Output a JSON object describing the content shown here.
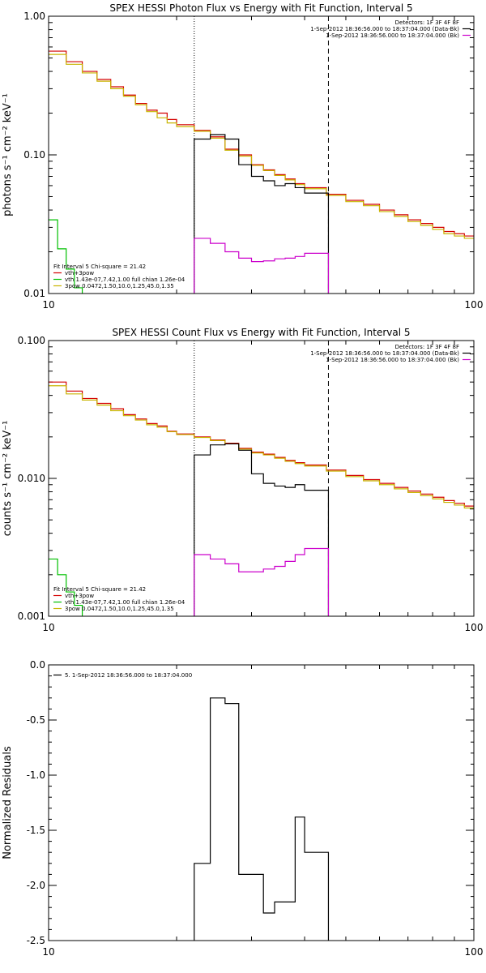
{
  "chart_data": [
    {
      "type": "line",
      "scale": {
        "x": "log",
        "y": "log"
      },
      "title": "SPEX HESSI Photon Flux vs Energy with Fit Function, Interval 5",
      "ylabel": "photons s⁻¹ cm⁻² keV⁻¹",
      "xlabel": "",
      "xlim": [
        10,
        100
      ],
      "ylim": [
        0.01,
        1.0
      ],
      "yticks": [
        {
          "v": 0.01,
          "label": "0.01"
        },
        {
          "v": 0.1,
          "label": "0.10"
        },
        {
          "v": 1.0,
          "label": "1.00"
        }
      ],
      "xticks": [
        {
          "v": 10,
          "label": "10"
        },
        {
          "v": 100,
          "label": "100"
        }
      ],
      "vlines": [
        {
          "x": 22.0,
          "style": "dotted"
        },
        {
          "x": 45.5,
          "style": "dashed"
        }
      ],
      "legend_tr": {
        "lines": [
          {
            "text": "Detectors: 1F 3F 4F 8F",
            "color": ""
          },
          {
            "text": "1-Sep-2012 18:36:56.000 to 18:37:04.000 (Data-Bk)",
            "color": "#000000"
          },
          {
            "text": "1-Sep-2012 18:36:56.000 to 18:37:04.000 (Bk)",
            "color": "#cc00cc"
          }
        ]
      },
      "legend_bl": {
        "header": "Fit Interval 5   Chi-square = 21.42",
        "lines": [
          {
            "text": "vth+3pow",
            "color": "#d40000"
          },
          {
            "text": "vth 1.43e-07,7.42,1.00  full chian 1.26e-04",
            "color": "#00c000"
          },
          {
            "text": "3pow 0.0472,1.50,10.0,1.25,45.0,1.35",
            "color": "#c8b400"
          }
        ]
      },
      "series": [
        {
          "name": "vth+3pow",
          "color": "#d40000",
          "edges": [
            10,
            11,
            12,
            13,
            14,
            15,
            16,
            17,
            18,
            19,
            20,
            22,
            24,
            26,
            28,
            30,
            32,
            34,
            36,
            38,
            40,
            45,
            50,
            55,
            60,
            65,
            70,
            75,
            80,
            85,
            90,
            95,
            100
          ],
          "values": [
            0.56,
            0.47,
            0.4,
            0.35,
            0.31,
            0.27,
            0.235,
            0.21,
            0.2,
            0.18,
            0.165,
            0.15,
            0.135,
            0.11,
            0.1,
            0.085,
            0.078,
            0.072,
            0.067,
            0.062,
            0.058,
            0.052,
            0.047,
            0.044,
            0.04,
            0.037,
            0.034,
            0.032,
            0.03,
            0.028,
            0.027,
            0.026
          ]
        },
        {
          "name": "3pow",
          "color": "#c8b400",
          "edges": [
            10,
            11,
            12,
            13,
            14,
            15,
            16,
            17,
            18,
            19,
            20,
            22,
            24,
            26,
            28,
            30,
            32,
            34,
            36,
            38,
            40,
            45,
            50,
            55,
            60,
            65,
            70,
            75,
            80,
            85,
            90,
            95,
            100
          ],
          "values": [
            0.53,
            0.45,
            0.39,
            0.34,
            0.3,
            0.265,
            0.23,
            0.205,
            0.185,
            0.17,
            0.16,
            0.148,
            0.132,
            0.108,
            0.098,
            0.084,
            0.077,
            0.071,
            0.066,
            0.061,
            0.057,
            0.051,
            0.046,
            0.043,
            0.039,
            0.036,
            0.033,
            0.031,
            0.029,
            0.027,
            0.026,
            0.025
          ]
        },
        {
          "name": "vth",
          "color": "#00c000",
          "edges": [
            10,
            10.5,
            11,
            11.5,
            12
          ],
          "values": [
            0.034,
            0.021,
            0.015,
            0.011
          ]
        },
        {
          "name": "Data-Bk",
          "color": "#000000",
          "edges": [
            22,
            24,
            26,
            28,
            30,
            32,
            34,
            36,
            38,
            40,
            45.5
          ],
          "values": [
            0.13,
            0.14,
            0.13,
            0.085,
            0.07,
            0.065,
            0.06,
            0.062,
            0.058,
            0.053
          ]
        },
        {
          "name": "Bk",
          "color": "#cc00cc",
          "edges": [
            22,
            24,
            26,
            28,
            30,
            32,
            34,
            36,
            38,
            40,
            45.5
          ],
          "values": [
            0.025,
            0.023,
            0.02,
            0.018,
            0.017,
            0.0172,
            0.0178,
            0.018,
            0.0185,
            0.0195
          ]
        }
      ]
    },
    {
      "type": "line",
      "scale": {
        "x": "log",
        "y": "log"
      },
      "title": "SPEX HESSI Count Flux vs Energy with Fit Function, Interval 5",
      "ylabel": "counts s⁻¹ cm⁻² keV⁻¹",
      "xlabel": "",
      "xlim": [
        10,
        100
      ],
      "ylim": [
        0.001,
        0.1
      ],
      "yticks": [
        {
          "v": 0.001,
          "label": "0.001"
        },
        {
          "v": 0.01,
          "label": "0.010"
        },
        {
          "v": 0.1,
          "label": "0.100"
        }
      ],
      "xticks": [
        {
          "v": 10,
          "label": "10"
        },
        {
          "v": 100,
          "label": "100"
        }
      ],
      "vlines": [
        {
          "x": 22.0,
          "style": "dotted"
        },
        {
          "x": 45.5,
          "style": "dashed"
        }
      ],
      "legend_tr": {
        "lines": [
          {
            "text": "Detectors: 1F 3F 4F 8F",
            "color": ""
          },
          {
            "text": "1-Sep-2012 18:36:56.000 to 18:37:04.000 (Data-Bk)",
            "color": "#000000"
          },
          {
            "text": "1-Sep-2012 18:36:56.000 to 18:37:04.000 (Bk)",
            "color": "#cc00cc"
          }
        ]
      },
      "legend_bl": {
        "header": "Fit Interval 5   Chi-square = 21.42",
        "lines": [
          {
            "text": "vth+3pow",
            "color": "#d40000"
          },
          {
            "text": "vth 1.43e-07,7.42,1.00  full chian 1.26e-04",
            "color": "#00c000"
          },
          {
            "text": "3pow 0.0472,1.50,10.0,1.25,45.0,1.35",
            "color": "#c8b400"
          }
        ]
      },
      "series": [
        {
          "name": "vth+3pow",
          "color": "#d40000",
          "edges": [
            10,
            11,
            12,
            13,
            14,
            15,
            16,
            17,
            18,
            19,
            20,
            22,
            24,
            26,
            28,
            30,
            32,
            34,
            36,
            38,
            40,
            45,
            50,
            55,
            60,
            65,
            70,
            75,
            80,
            85,
            90,
            95,
            100
          ],
          "values": [
            0.05,
            0.043,
            0.038,
            0.035,
            0.032,
            0.029,
            0.027,
            0.025,
            0.024,
            0.022,
            0.021,
            0.02,
            0.019,
            0.018,
            0.0165,
            0.0155,
            0.015,
            0.0142,
            0.0135,
            0.013,
            0.0125,
            0.0115,
            0.0105,
            0.0098,
            0.0092,
            0.0086,
            0.0081,
            0.0077,
            0.0073,
            0.0069,
            0.0066,
            0.0063
          ]
        },
        {
          "name": "3pow",
          "color": "#c8b400",
          "edges": [
            10,
            11,
            12,
            13,
            14,
            15,
            16,
            17,
            18,
            19,
            20,
            22,
            24,
            26,
            28,
            30,
            32,
            34,
            36,
            38,
            40,
            45,
            50,
            55,
            60,
            65,
            70,
            75,
            80,
            85,
            90,
            95,
            100
          ],
          "values": [
            0.047,
            0.041,
            0.037,
            0.034,
            0.031,
            0.0285,
            0.0265,
            0.0245,
            0.0235,
            0.0218,
            0.0208,
            0.0198,
            0.0188,
            0.0178,
            0.0163,
            0.0153,
            0.0148,
            0.014,
            0.0133,
            0.0128,
            0.0123,
            0.0113,
            0.0103,
            0.0096,
            0.009,
            0.0084,
            0.0079,
            0.0075,
            0.0071,
            0.0067,
            0.0064,
            0.0061
          ]
        },
        {
          "name": "vth",
          "color": "#00c000",
          "edges": [
            10,
            10.5,
            11,
            11.5,
            12
          ],
          "values": [
            0.0026,
            0.002,
            0.0015,
            0.0012
          ]
        },
        {
          "name": "Data-Bk",
          "color": "#000000",
          "edges": [
            22,
            24,
            26,
            28,
            30,
            32,
            34,
            36,
            38,
            40,
            45.5
          ],
          "values": [
            0.0148,
            0.0175,
            0.0178,
            0.016,
            0.0108,
            0.0092,
            0.0088,
            0.0086,
            0.009,
            0.0082
          ]
        },
        {
          "name": "Bk",
          "color": "#cc00cc",
          "edges": [
            22,
            24,
            26,
            28,
            30,
            32,
            34,
            36,
            38,
            40,
            45.5
          ],
          "values": [
            0.0028,
            0.0026,
            0.0024,
            0.0021,
            0.0021,
            0.0022,
            0.0023,
            0.0025,
            0.0028,
            0.0031
          ]
        }
      ]
    },
    {
      "type": "line",
      "scale": {
        "x": "log",
        "y": "linear"
      },
      "title": "",
      "ylabel": "Normalized Residuals",
      "xlabel": "",
      "xlim": [
        10,
        100
      ],
      "ylim": [
        -2.5,
        0.0
      ],
      "yticks": [
        {
          "v": 0.0,
          "label": "0.0"
        },
        {
          "v": -0.5,
          "label": "-0.5"
        },
        {
          "v": -1.0,
          "label": "-1.0"
        },
        {
          "v": -1.5,
          "label": "-1.5"
        },
        {
          "v": -2.0,
          "label": "-2.0"
        },
        {
          "v": -2.5,
          "label": "-2.5"
        }
      ],
      "xticks": [
        {
          "v": 10,
          "label": "10"
        },
        {
          "v": 100,
          "label": "100"
        }
      ],
      "vlines": [],
      "legend_tl": {
        "lines": [
          {
            "text": "5.  1-Sep-2012 18:36:56.000 to 18:37:04.000",
            "color": "#000000"
          }
        ]
      },
      "series": [
        {
          "name": "5.",
          "color": "#000000",
          "edges": [
            22,
            24,
            26,
            28,
            30,
            32,
            34,
            36,
            38,
            40,
            45.5
          ],
          "values": [
            -1.8,
            -0.3,
            -0.35,
            -1.9,
            -1.9,
            -2.25,
            -2.15,
            -2.15,
            -1.38,
            -1.7
          ]
        }
      ]
    }
  ]
}
